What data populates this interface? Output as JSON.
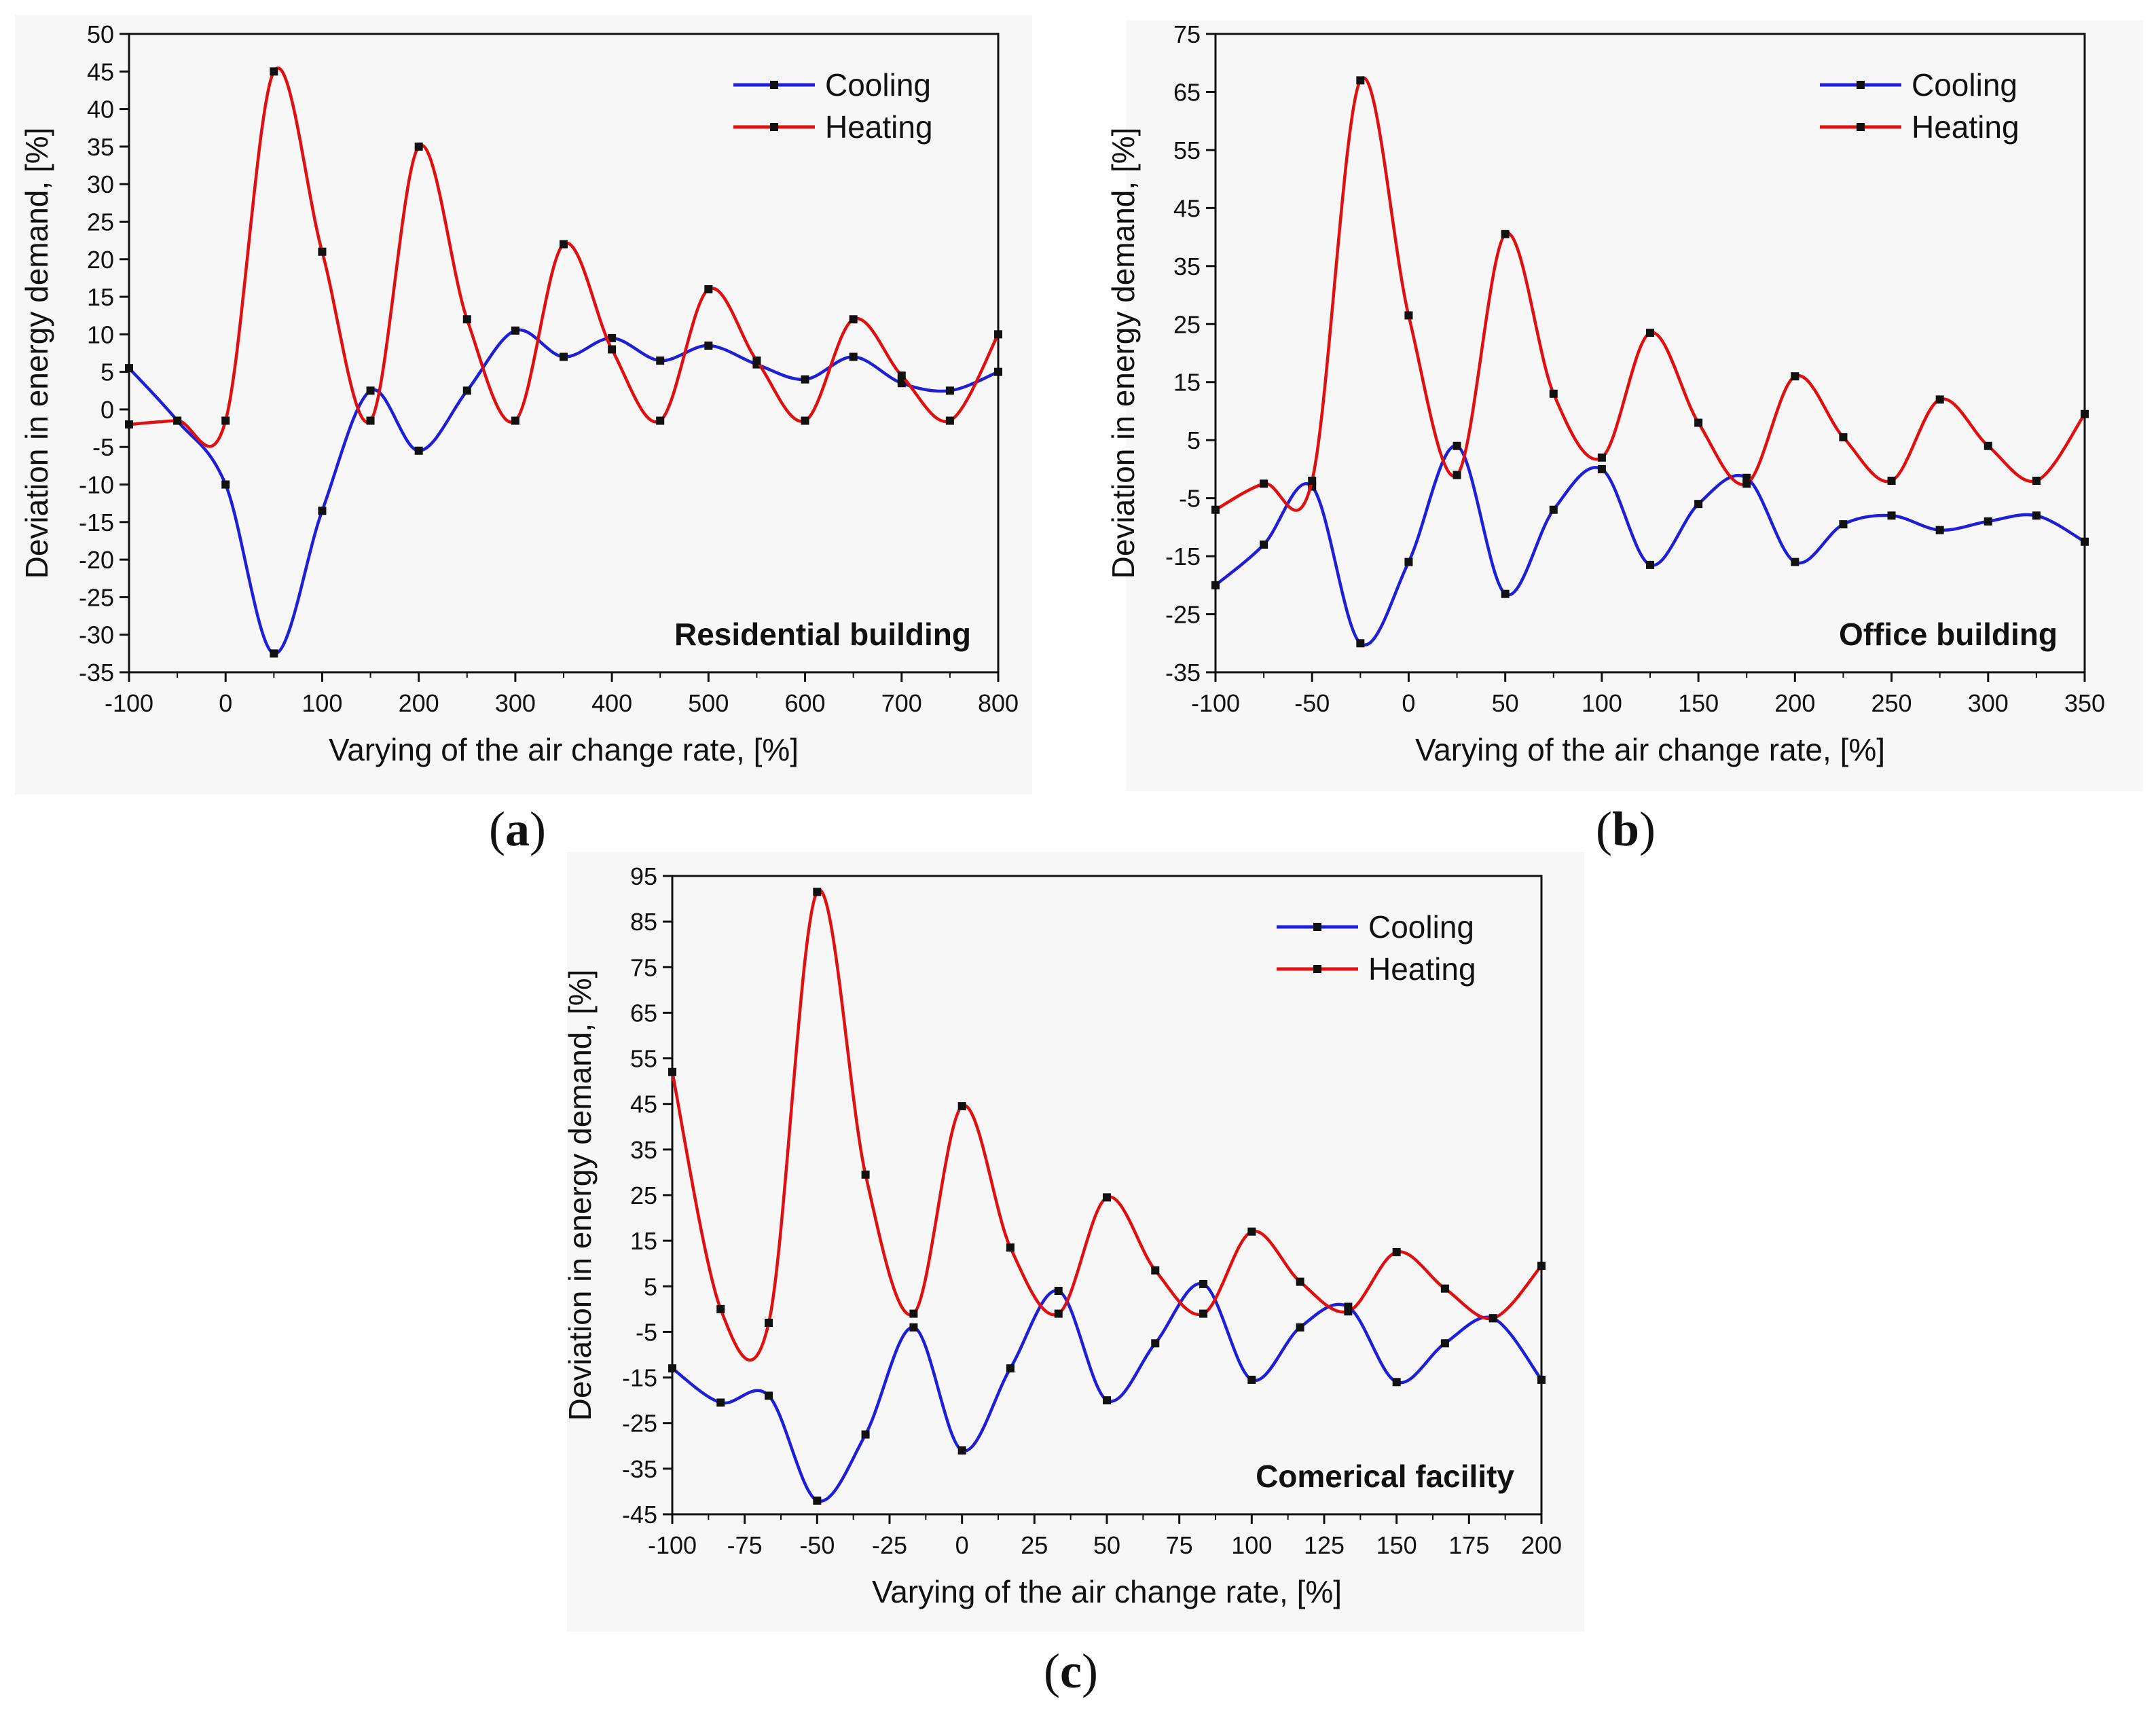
{
  "figure": {
    "labels": [
      {
        "open": "(",
        "letter": "a",
        "close": ")"
      },
      {
        "open": "(",
        "letter": "b",
        "close": ")"
      },
      {
        "open": "(",
        "letter": "c",
        "close": ")"
      }
    ]
  },
  "colors": {
    "cooling": "#1f1fd8",
    "heating": "#e01010",
    "marker": "#111111",
    "axis": "#111111",
    "panel_bg": "#f7f7f7"
  },
  "chart_data": [
    {
      "type": "line",
      "title": "Residential building",
      "xlabel": "Varying of the air change rate, [%]",
      "ylabel": "Deviation in energy demand, [%]",
      "xlim": [
        -100,
        800
      ],
      "ylim": [
        -35,
        50
      ],
      "xticks": [
        -100,
        0,
        100,
        200,
        300,
        400,
        500,
        600,
        700,
        800
      ],
      "yticks": [
        -35,
        -30,
        -25,
        -20,
        -15,
        -10,
        -5,
        0,
        5,
        10,
        15,
        20,
        25,
        30,
        35,
        40,
        45,
        50
      ],
      "legend_position": "top-right",
      "grid": false,
      "series": [
        {
          "name": "Cooling",
          "x": [
            -100,
            -50,
            0,
            50,
            100,
            150,
            200,
            250,
            300,
            350,
            400,
            450,
            500,
            550,
            600,
            650,
            700,
            750,
            800
          ],
          "y": [
            5.5,
            -1.5,
            -10,
            -32.5,
            -13.5,
            2.5,
            -5.5,
            2.5,
            10.5,
            7,
            9.5,
            6.5,
            8.5,
            6,
            4,
            7,
            3.5,
            2.5,
            5
          ]
        },
        {
          "name": "Heating",
          "x": [
            -100,
            -50,
            0,
            50,
            100,
            150,
            200,
            250,
            300,
            350,
            400,
            450,
            500,
            550,
            600,
            650,
            700,
            750,
            800
          ],
          "y": [
            -2,
            -1.5,
            -1.5,
            45,
            21,
            -1.5,
            35,
            12,
            -1.5,
            22,
            8,
            -1.5,
            16,
            6.5,
            -1.5,
            12,
            4.5,
            -1.5,
            10
          ]
        }
      ]
    },
    {
      "type": "line",
      "title": "Office building",
      "xlabel": "Varying of the air change rate, [%]",
      "ylabel": "Deviation in energy demand, [%]",
      "xlim": [
        -100,
        350
      ],
      "ylim": [
        -35,
        75
      ],
      "xticks": [
        -100,
        -50,
        0,
        50,
        100,
        150,
        200,
        250,
        300,
        350
      ],
      "yticks": [
        -35,
        -25,
        -15,
        -5,
        5,
        15,
        25,
        35,
        45,
        55,
        65,
        75
      ],
      "legend_position": "top-right",
      "grid": false,
      "series": [
        {
          "name": "Cooling",
          "x": [
            -100,
            -75,
            -50,
            -25,
            0,
            25,
            50,
            75,
            100,
            125,
            150,
            175,
            200,
            225,
            250,
            275,
            300,
            325,
            350
          ],
          "y": [
            -20,
            -13,
            -3,
            -30,
            -16,
            4,
            -21.5,
            -7,
            0,
            -16.5,
            -6,
            -1.5,
            -16,
            -9.5,
            -8,
            -10.5,
            -9,
            -8,
            -12.5
          ]
        },
        {
          "name": "Heating",
          "x": [
            -100,
            -75,
            -50,
            -25,
            0,
            25,
            50,
            75,
            100,
            125,
            150,
            175,
            200,
            225,
            250,
            275,
            300,
            325,
            350
          ],
          "y": [
            -7,
            -2.5,
            -2,
            67,
            26.5,
            -1,
            40.5,
            13,
            2,
            23.5,
            8,
            -2.5,
            16,
            5.5,
            -2,
            12,
            4,
            -2,
            9.5
          ]
        }
      ]
    },
    {
      "type": "line",
      "title": "Comerical facility",
      "xlabel": "Varying of the air change rate, [%]",
      "ylabel": "Deviation in energy demand, [%]",
      "xlim": [
        -100,
        200
      ],
      "ylim": [
        -45,
        95
      ],
      "xticks": [
        -100,
        -75,
        -50,
        -25,
        0,
        25,
        50,
        75,
        100,
        125,
        150,
        175,
        200
      ],
      "yticks": [
        -45,
        -35,
        -25,
        -15,
        -5,
        5,
        15,
        25,
        35,
        45,
        55,
        65,
        75,
        85,
        95
      ],
      "legend_position": "top-right",
      "grid": false,
      "series": [
        {
          "name": "Cooling",
          "x": [
            -100,
            -83.3,
            -66.7,
            -50,
            -33.3,
            -16.7,
            0,
            16.7,
            33.3,
            50,
            66.7,
            83.3,
            100,
            116.7,
            133.3,
            150,
            166.7,
            183.3,
            200
          ],
          "y": [
            -13,
            -20.5,
            -19,
            -42,
            -27.5,
            -4,
            -31,
            -13,
            4,
            -20,
            -7.5,
            5.5,
            -15.5,
            -4,
            0.5,
            -16,
            -7.5,
            -2,
            -15.5
          ]
        },
        {
          "name": "Heating",
          "x": [
            -100,
            -83.3,
            -66.7,
            -50,
            -33.3,
            -16.7,
            0,
            16.7,
            33.3,
            50,
            66.7,
            83.3,
            100,
            116.7,
            133.3,
            150,
            166.7,
            183.3,
            200
          ],
          "y": [
            52,
            0,
            -3,
            91.5,
            29.5,
            -1,
            44.5,
            13.5,
            -1,
            24.5,
            8.5,
            -1,
            17,
            6,
            -0.5,
            12.5,
            4.5,
            -2,
            9.5
          ]
        }
      ]
    }
  ]
}
